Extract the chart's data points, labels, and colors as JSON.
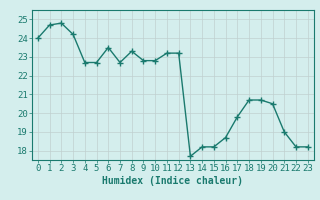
{
  "x": [
    0,
    1,
    2,
    3,
    4,
    5,
    6,
    7,
    8,
    9,
    10,
    11,
    12,
    13,
    14,
    15,
    16,
    17,
    18,
    19,
    20,
    21,
    22,
    23
  ],
  "y": [
    24.0,
    24.7,
    24.8,
    24.2,
    22.7,
    22.7,
    23.5,
    22.7,
    23.3,
    22.8,
    22.8,
    23.2,
    23.2,
    17.7,
    18.2,
    18.2,
    18.7,
    19.8,
    20.7,
    20.7,
    20.5,
    19.0,
    18.2,
    18.2
  ],
  "line_color": "#1a7a6e",
  "marker": "+",
  "marker_size": 4,
  "bg_color": "#d4eeed",
  "grid_color": "#c0d0d0",
  "xlabel": "Humidex (Indice chaleur)",
  "xlim": [
    -0.5,
    23.5
  ],
  "ylim": [
    17.5,
    25.5
  ],
  "yticks": [
    18,
    19,
    20,
    21,
    22,
    23,
    24,
    25
  ],
  "xticks": [
    0,
    1,
    2,
    3,
    4,
    5,
    6,
    7,
    8,
    9,
    10,
    11,
    12,
    13,
    14,
    15,
    16,
    17,
    18,
    19,
    20,
    21,
    22,
    23
  ],
  "xlabel_fontsize": 7,
  "tick_fontsize": 6.5,
  "line_width": 1.0
}
